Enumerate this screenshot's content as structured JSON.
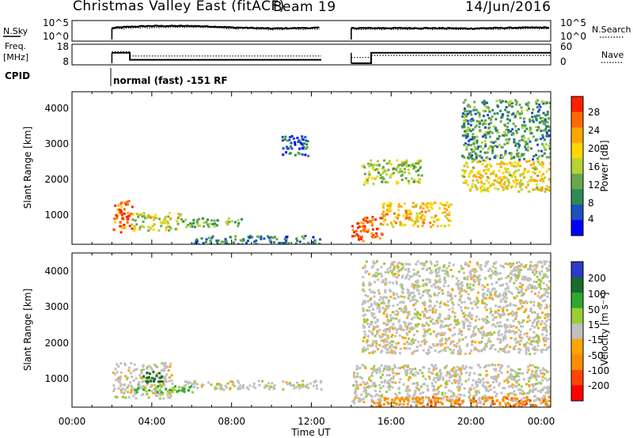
{
  "header": {
    "title": "Christmas Valley East (fitACF)",
    "beam": "Beam 19",
    "date": "14/Jun/2016"
  },
  "colors": {
    "accent": "#000000",
    "power_scale": [
      "#0000ff",
      "#1e4ec0",
      "#2e8b57",
      "#6aa84f",
      "#b5d334",
      "#ffd700",
      "#ffa500",
      "#ff6a00",
      "#ff2000"
    ],
    "velocity_scale": [
      "#2d3acb",
      "#1a6b2c",
      "#2ea82e",
      "#9acd32",
      "#c0c0c0",
      "#ffa500",
      "#ff8c00",
      "#ff4500",
      "#ff0000"
    ]
  },
  "panels": {
    "nsky": {
      "label": "N.Sky",
      "ticks_left": [
        "10^5",
        "10^0"
      ],
      "ticks_right": [
        "10^5",
        "10^0"
      ],
      "right_label": "N.Search"
    },
    "freq": {
      "label_line1": "Freq.",
      "label_line2": "[MHz]",
      "ticks_left": [
        "18",
        "8"
      ],
      "ticks_right": [
        "60",
        "0"
      ],
      "right_label": "Nave"
    },
    "cpid": {
      "label": "CPID",
      "mode_text": "normal (fast) -151 RF"
    },
    "power": {
      "ylabel": "Slant Range [km]",
      "yticks": [
        "4000",
        "3000",
        "2000",
        "1000"
      ],
      "colorbar_label": "Power [dB]",
      "colorbar_ticks": [
        "28",
        "24",
        "20",
        "16",
        "12",
        "8",
        "4"
      ]
    },
    "velocity": {
      "ylabel": "Slant Range [km]",
      "yticks": [
        "4000",
        "3000",
        "2000",
        "1000"
      ],
      "colorbar_label": "Velocity [m s⁻¹]",
      "colorbar_ticks": [
        "200",
        "100",
        "50",
        "15",
        "-15",
        "-50",
        "-100",
        "-200"
      ]
    },
    "xaxis": {
      "label": "Time UT",
      "ticks": [
        "00:00",
        "04:00",
        "08:00",
        "12:00",
        "16:00",
        "20:00",
        "00:00"
      ]
    }
  },
  "chart_data": [
    {
      "type": "line",
      "name": "N.Sky / N.Search",
      "x_range_hours": [
        0,
        24
      ],
      "gap_hours": [
        12.5,
        14.0
      ],
      "data_start_hour": 2.0,
      "y_scale": "log",
      "ylim": [
        1,
        100000
      ],
      "series": [
        {
          "name": "N.Sky",
          "x": [
            2,
            4,
            6,
            8,
            10,
            12.5,
            14,
            16,
            18,
            20,
            22,
            24
          ],
          "values": [
            2000,
            8000,
            8000,
            3000,
            1500,
            2500,
            2000,
            2000,
            2000,
            1500,
            2500,
            3000
          ]
        },
        {
          "name": "N.Search",
          "x": [
            2,
            4,
            6,
            8,
            10,
            12.5,
            14,
            16,
            18,
            20,
            22,
            24
          ],
          "values": [
            1000,
            3000,
            4000,
            1500,
            800,
            1200,
            1000,
            1000,
            1000,
            800,
            1200,
            1500
          ]
        }
      ]
    },
    {
      "type": "line",
      "name": "Freq / Nave",
      "x_range_hours": [
        0,
        24
      ],
      "series": [
        {
          "name": "Freq.",
          "x": [
            2,
            2.9,
            2.9,
            12.5,
            14,
            15,
            15,
            24
          ],
          "values": [
            14,
            14,
            10,
            10,
            8,
            8,
            14,
            14
          ]
        },
        {
          "name": "Nave",
          "x": [
            2,
            2.9,
            2.9,
            12.5,
            14,
            15,
            15,
            24
          ],
          "values": [
            40,
            40,
            25,
            25,
            20,
            20,
            27,
            27
          ]
        }
      ]
    },
    {
      "type": "heatmap",
      "name": "Power",
      "x_range_hours": [
        0,
        24
      ],
      "ylim_km": [
        180,
        4500
      ],
      "z_label": "Power [dB]",
      "z_range": [
        0,
        30
      ],
      "gap_hours": [
        12.5,
        14.0
      ],
      "features": [
        {
          "t": [
            2.0,
            3.0
          ],
          "r": [
            550,
            1450
          ],
          "z": 24
        },
        {
          "t": [
            3.0,
            5.5
          ],
          "r": [
            600,
            1100
          ],
          "z": 16
        },
        {
          "t": [
            5.5,
            8.5
          ],
          "r": [
            700,
            950
          ],
          "z": 12
        },
        {
          "t": [
            6.0,
            12.5
          ],
          "r": [
            200,
            450
          ],
          "z": 8
        },
        {
          "t": [
            10.5,
            11.8
          ],
          "r": [
            2700,
            3300
          ],
          "z": 6
        },
        {
          "t": [
            14.0,
            15.5
          ],
          "r": [
            300,
            1000
          ],
          "z": 26
        },
        {
          "t": [
            15.5,
            19.0
          ],
          "r": [
            700,
            1400
          ],
          "z": 20
        },
        {
          "t": [
            14.5,
            17.5
          ],
          "r": [
            1900,
            2600
          ],
          "z": 14
        },
        {
          "t": [
            19.5,
            24.0
          ],
          "r": [
            1700,
            2600
          ],
          "z": 18
        },
        {
          "t": [
            19.5,
            24.0
          ],
          "r": [
            2600,
            4300
          ],
          "z": 10
        }
      ]
    },
    {
      "type": "heatmap",
      "name": "Velocity",
      "x_range_hours": [
        0,
        24
      ],
      "ylim_km": [
        180,
        4500
      ],
      "z_label": "Velocity [m s⁻¹]",
      "z_range": [
        -200,
        200
      ],
      "gap_hours": [
        12.5,
        14.0
      ],
      "features": [
        {
          "t": [
            2.0,
            5.0
          ],
          "r": [
            450,
            1450
          ],
          "z": 0
        },
        {
          "t": [
            3.5,
            4.6
          ],
          "r": [
            900,
            1200
          ],
          "z": 120
        },
        {
          "t": [
            3.0,
            6.0
          ],
          "r": [
            600,
            800
          ],
          "z": 40
        },
        {
          "t": [
            5.5,
            12.5
          ],
          "r": [
            700,
            950
          ],
          "z": 0
        },
        {
          "t": [
            14.0,
            24.0
          ],
          "r": [
            300,
            1400
          ],
          "z": 0
        },
        {
          "t": [
            15.0,
            24.0
          ],
          "r": [
            200,
            500
          ],
          "z": -60
        },
        {
          "t": [
            14.5,
            24.0
          ],
          "r": [
            1700,
            4300
          ],
          "z": 0
        }
      ]
    }
  ]
}
